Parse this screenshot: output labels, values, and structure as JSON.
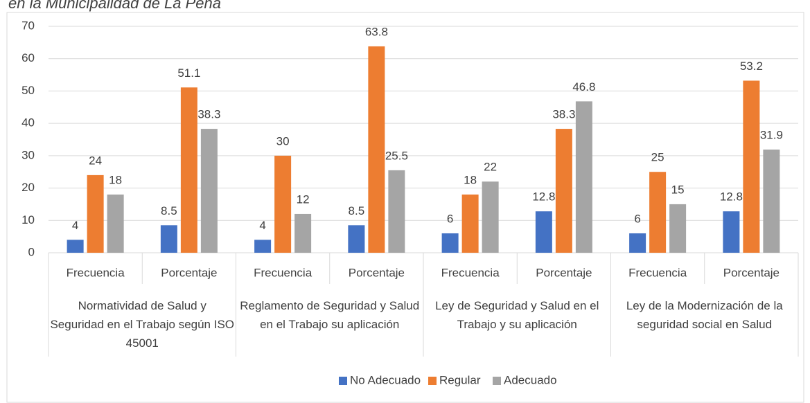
{
  "chart_data": {
    "type": "bar",
    "title": "en la Municipalidad de La Peña",
    "categories": [
      "Frecuencia",
      "Porcentaje",
      "Frecuencia",
      "Porcentaje",
      "Frecuencia",
      "Porcentaje",
      "Frecuencia",
      "Porcentaje"
    ],
    "groups": [
      "Normatividad de Salud y Seguridad en el Trabajo según ISO 45001",
      "Reglamento de Seguridad y Salud en el Trabajo su aplicación",
      "Ley de Seguridad y Salud en el Trabajo y su aplicación",
      "Ley de la Modernización de la seguridad social en Salud"
    ],
    "series": [
      {
        "name": "No Adecuado",
        "color": "#4472c4",
        "values": [
          4,
          8.5,
          4,
          8.5,
          6,
          12.8,
          6,
          12.8
        ]
      },
      {
        "name": "Regular",
        "color": "#ed7d31",
        "values": [
          24,
          51.1,
          30,
          63.8,
          18,
          38.3,
          25,
          53.2
        ]
      },
      {
        "name": "Adecuado",
        "color": "#a5a5a5",
        "values": [
          18,
          38.3,
          12,
          25.5,
          22,
          46.8,
          15,
          31.9
        ]
      }
    ],
    "ylim": [
      0,
      70
    ],
    "yticks": [
      0,
      10,
      20,
      30,
      40,
      50,
      60,
      70
    ],
    "grid": true,
    "legend": "bottom"
  }
}
